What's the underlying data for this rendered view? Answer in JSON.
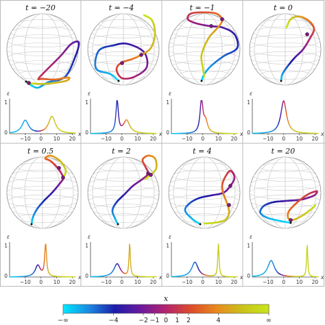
{
  "figure": {
    "panels": [
      {
        "t_label": "t = −20"
      },
      {
        "t_label": "t = −4"
      },
      {
        "t_label": "t = −1"
      },
      {
        "t_label": "t = 0"
      },
      {
        "t_label": "t = 0.5"
      },
      {
        "t_label": "t = 2"
      },
      {
        "t_label": "t = 4"
      },
      {
        "t_label": "t = 20"
      }
    ],
    "colorbar": {
      "title": "x",
      "ticks": [
        "−∞",
        "−4",
        "−2",
        "−1",
        "0",
        "1",
        "2",
        "4",
        "∞"
      ],
      "colors": [
        "#00e5ff",
        "#1b86e0",
        "#1c1caa",
        "#6a1a9e",
        "#b3246e",
        "#dd4d2a",
        "#e88a1e",
        "#c9c21a",
        "#c8e51a"
      ]
    }
  },
  "chart_data": {
    "type": "line",
    "ylabel": "ε",
    "xlabel": "x",
    "xticks": [
      "−10",
      "0",
      "10",
      "20"
    ],
    "xlim": [
      -20,
      22
    ],
    "panels": [
      {
        "t": -20,
        "peaks": [
          {
            "x": -10,
            "h": 0.4,
            "w": 2.6
          },
          {
            "x": 7,
            "h": 0.52,
            "w": 2.6
          }
        ]
      },
      {
        "t": -4,
        "peaks": [
          {
            "x": -3,
            "h": 1.0,
            "w": 0.9
          },
          {
            "x": 3,
            "h": 0.4,
            "w": 2.5
          }
        ]
      },
      {
        "t": -1,
        "peaks": [
          {
            "x": -0.8,
            "h": 1.0,
            "w": 1.1
          },
          {
            "x": 1.8,
            "h": 0.35,
            "w": 1.6
          }
        ]
      },
      {
        "t": 0,
        "peaks": [
          {
            "x": 0,
            "h": 1.0,
            "w": 2.2
          }
        ]
      },
      {
        "t": 0.5,
        "peaks": [
          {
            "x": -2,
            "h": 0.35,
            "w": 2.0
          },
          {
            "x": 3,
            "h": 1.0,
            "w": 0.7
          }
        ]
      },
      {
        "t": 2,
        "peaks": [
          {
            "x": -3,
            "h": 0.4,
            "w": 2.5
          },
          {
            "x": 5,
            "h": 1.0,
            "w": 0.5
          }
        ]
      },
      {
        "t": 4,
        "peaks": [
          {
            "x": -5,
            "h": 0.45,
            "w": 2.5
          },
          {
            "x": 10,
            "h": 1.0,
            "w": 0.5
          }
        ]
      },
      {
        "t": 20,
        "peaks": [
          {
            "x": -8,
            "h": 0.5,
            "w": 2.6
          },
          {
            "x": 15,
            "h": 1.0,
            "w": 0.45
          }
        ]
      }
    ]
  }
}
